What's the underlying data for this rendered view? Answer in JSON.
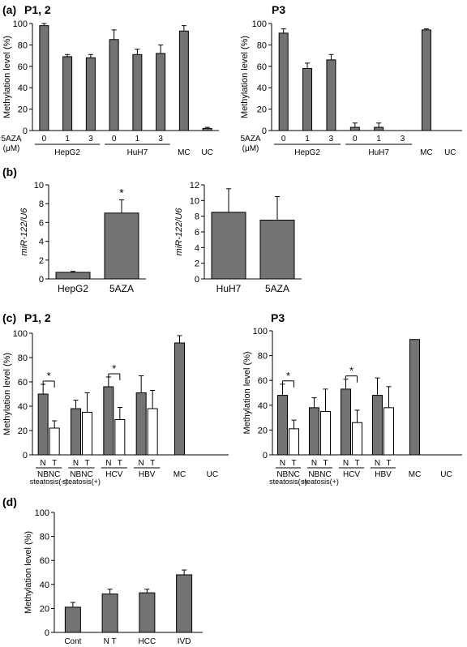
{
  "figure": {
    "panels": [
      {
        "label": "(a)"
      },
      {
        "label": "(b)"
      },
      {
        "label": "(c)"
      },
      {
        "label": "(d)"
      }
    ]
  },
  "chart_data": [
    {
      "id": "a1",
      "type": "bar",
      "title": "P1, 2",
      "ylabel": "Methylation level (%)",
      "ylim": [
        0,
        100
      ],
      "yticks": [
        0,
        20,
        40,
        60,
        80,
        100
      ],
      "row_label": "5AZA",
      "row_unit": "(μM)",
      "categories": [
        "0",
        "1",
        "3",
        "0",
        "1",
        "3",
        "MC",
        "UC"
      ],
      "values": [
        98,
        69,
        68,
        85,
        71,
        72,
        93,
        2
      ],
      "errors": [
        2,
        2,
        3,
        9,
        5,
        8,
        5,
        1
      ],
      "groups": [
        {
          "name": "HepG2",
          "from": 0,
          "to": 2
        },
        {
          "name": "HuH7",
          "from": 3,
          "to": 5
        }
      ]
    },
    {
      "id": "a2",
      "type": "bar",
      "title": "P3",
      "ylabel": "Methylation level (%)",
      "ylim": [
        0,
        100
      ],
      "yticks": [
        0,
        20,
        40,
        60,
        80,
        100
      ],
      "row_label": "5AZA",
      "row_unit": "(μM)",
      "categories": [
        "0",
        "1",
        "3",
        "0",
        "1",
        "3",
        "MC",
        "UC"
      ],
      "values": [
        91,
        58,
        66,
        3,
        3,
        0,
        94,
        0
      ],
      "errors": [
        4,
        5,
        5,
        4,
        4,
        0,
        1,
        0
      ],
      "groups": [
        {
          "name": "HepG2",
          "from": 0,
          "to": 2
        },
        {
          "name": "HuH7",
          "from": 3,
          "to": 5
        }
      ]
    },
    {
      "id": "b1",
      "type": "bar",
      "ylabel": "miR-122/U6",
      "ylim": [
        0,
        10
      ],
      "yticks": [
        0,
        2,
        4,
        6,
        8,
        10
      ],
      "categories": [
        "HepG2",
        "5AZA"
      ],
      "values": [
        0.7,
        7.0
      ],
      "errors": [
        0.1,
        1.4
      ],
      "annotations": [
        {
          "index": 1,
          "text": "*"
        }
      ]
    },
    {
      "id": "b2",
      "type": "bar",
      "ylabel": "miR-122/U6",
      "ylim": [
        0,
        12
      ],
      "yticks": [
        0,
        2,
        4,
        6,
        8,
        10,
        12
      ],
      "categories": [
        "HuH7",
        "5AZA"
      ],
      "values": [
        8.5,
        7.5
      ],
      "errors": [
        3.0,
        3.0
      ]
    },
    {
      "id": "c1",
      "type": "bar",
      "title": "P1, 2",
      "ylabel": "Methylation level (%)",
      "ylim": [
        0,
        100
      ],
      "yticks": [
        0,
        20,
        40,
        60,
        80,
        100
      ],
      "pair_labels": [
        "N",
        "T"
      ],
      "groups": [
        "NBNC",
        "NBNC",
        "HCV",
        "HBV"
      ],
      "group_sublabels": [
        "steatosis(−)",
        "steatosis(+)",
        "",
        ""
      ],
      "series": [
        {
          "name": "N",
          "values": [
            50,
            38,
            56,
            51
          ],
          "errors": [
            8,
            7,
            8,
            14
          ]
        },
        {
          "name": "T",
          "values": [
            22,
            35,
            29,
            38
          ],
          "errors": [
            6,
            16,
            10,
            15
          ]
        }
      ],
      "singles": [
        {
          "name": "MC",
          "value": 92,
          "error": 6
        },
        {
          "name": "UC",
          "value": 0,
          "error": 0
        }
      ],
      "significance_groups": [
        0,
        2
      ],
      "significance_text": "*"
    },
    {
      "id": "c2",
      "type": "bar",
      "title": "P3",
      "ylabel": "Methylation level (%)",
      "ylim": [
        0,
        100
      ],
      "yticks": [
        0,
        20,
        40,
        60,
        80,
        100
      ],
      "pair_labels": [
        "N",
        "T"
      ],
      "groups": [
        "NBNC",
        "NBNC",
        "HCV",
        "HBV"
      ],
      "group_sublabels": [
        "steatosis(−)",
        "steatosis(+)",
        "",
        ""
      ],
      "series": [
        {
          "name": "N",
          "values": [
            48,
            38,
            53,
            48
          ],
          "errors": [
            9,
            8,
            8,
            14
          ]
        },
        {
          "name": "T",
          "values": [
            21,
            35,
            26,
            38
          ],
          "errors": [
            7,
            18,
            10,
            17
          ]
        }
      ],
      "singles": [
        {
          "name": "MC",
          "value": 93,
          "error": 0
        },
        {
          "name": "UC",
          "value": 0,
          "error": 0
        }
      ],
      "significance_groups": [
        0,
        2
      ],
      "significance_text": "*"
    },
    {
      "id": "d",
      "type": "bar",
      "ylabel": "Methylation level (%)",
      "ylim": [
        0,
        100
      ],
      "yticks": [
        0,
        20,
        40,
        60,
        80,
        100
      ],
      "categories": [
        "Cont",
        "N T",
        "HCC",
        "IVD"
      ],
      "values": [
        21,
        32,
        33,
        48
      ],
      "errors": [
        4,
        4,
        3,
        4
      ]
    }
  ],
  "colors": {
    "bar": "#737373",
    "bar_stroke": "#000000",
    "open_bar": "#ffffff"
  }
}
